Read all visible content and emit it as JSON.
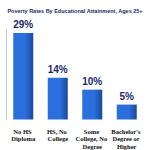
{
  "chart_data": {
    "type": "bar",
    "title": "Poverty Rates By Educational Attainment, Ages 25+",
    "categories": [
      "No HS Diploma",
      "HS, No College",
      "Some College, No Degree",
      "Bachelor's Degree or Higher"
    ],
    "values": [
      29,
      14,
      10,
      5
    ],
    "value_labels": [
      "29%",
      "14%",
      "10%",
      "5%"
    ],
    "color": "#2a6fdb",
    "ylim": [
      0,
      30
    ],
    "grid": false,
    "data_labels": true,
    "tick_labels": "x"
  }
}
